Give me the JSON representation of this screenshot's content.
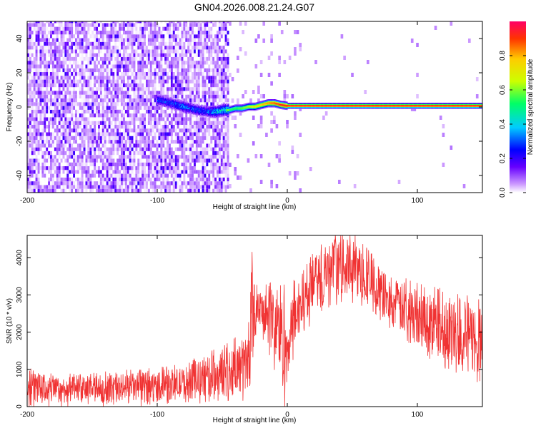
{
  "title": "GN04.2026.008.21.24.G07",
  "chart_data": [
    {
      "type": "heatmap",
      "title": "GN04.2026.008.21.24.G07",
      "xlabel": "Height of straight line (km)",
      "ylabel": "Frequency (Hz)",
      "xlim": [
        -200,
        150
      ],
      "ylim": [
        -50,
        50
      ],
      "xticks": [
        -200,
        -100,
        0,
        100
      ],
      "yticks": [
        -40,
        -20,
        0,
        20,
        40
      ],
      "colorbar": {
        "label": "Normalized spectral amplitude",
        "range": [
          0,
          1
        ],
        "ticks": [
          0.0,
          0.2,
          0.4,
          0.6,
          0.8
        ],
        "colors": [
          "#ffffff",
          "#cc99ff",
          "#6600ff",
          "#0000ff",
          "#00ccff",
          "#00ff66",
          "#ccff00",
          "#ffcc00",
          "#ff3300",
          "#ff0066"
        ]
      },
      "ridge": {
        "x": [
          -100,
          -90,
          -80,
          -70,
          -60,
          -55,
          -50,
          -45,
          -40,
          -35,
          -30,
          -25,
          -20,
          -15,
          -10,
          -5,
          0,
          150
        ],
        "frequency": [
          4,
          2,
          0,
          -2,
          -3,
          -3,
          -2,
          -2,
          -1,
          -1,
          0,
          0,
          1,
          2,
          2,
          1,
          0.5,
          0.5
        ],
        "amplitude": [
          0.3,
          0.3,
          0.35,
          0.3,
          0.35,
          0.45,
          0.5,
          0.55,
          0.55,
          0.6,
          0.65,
          0.75,
          0.8,
          0.85,
          0.9,
          0.95,
          0.95,
          0.95
        ]
      },
      "noise_region": {
        "x": [
          -200,
          -45
        ],
        "amplitude": [
          0.0,
          0.2
        ]
      },
      "grid": false
    },
    {
      "type": "line",
      "xlabel": "Height of straight line (km)",
      "ylabel": "SNR (10 * v/v)",
      "xlim": [
        -200,
        150
      ],
      "ylim": [
        0,
        4600
      ],
      "xticks": [
        -200,
        -100,
        0,
        100
      ],
      "yticks": [
        0,
        1000,
        2000,
        3000,
        4000
      ],
      "color": "#f03232",
      "grid": false,
      "envelope": {
        "x": [
          -200,
          -180,
          -160,
          -140,
          -120,
          -100,
          -80,
          -70,
          -60,
          -50,
          -45,
          -40,
          -35,
          -30,
          -27,
          -25,
          -20,
          -15,
          -10,
          -5,
          -2,
          0,
          3,
          5,
          10,
          20,
          30,
          40,
          50,
          60,
          70,
          80,
          90,
          100,
          110,
          120,
          130,
          140,
          150
        ],
        "low": [
          100,
          100,
          100,
          100,
          100,
          150,
          200,
          200,
          250,
          300,
          300,
          300,
          350,
          400,
          1500,
          1900,
          2000,
          1700,
          1200,
          700,
          100,
          500,
          1200,
          1500,
          2000,
          2500,
          2800,
          3000,
          3000,
          2800,
          2500,
          2200,
          1900,
          1700,
          1500,
          1300,
          1100,
          900,
          800
        ],
        "high": [
          1000,
          800,
          800,
          850,
          900,
          950,
          1050,
          1200,
          1350,
          1500,
          1600,
          1700,
          1800,
          2000,
          4000,
          3200,
          3000,
          3200,
          3300,
          3400,
          3000,
          1800,
          2700,
          3200,
          3500,
          4000,
          4300,
          4500,
          4500,
          4200,
          3800,
          3400,
          3300,
          3200,
          3100,
          3000,
          2900,
          2800,
          2700
        ]
      }
    }
  ]
}
